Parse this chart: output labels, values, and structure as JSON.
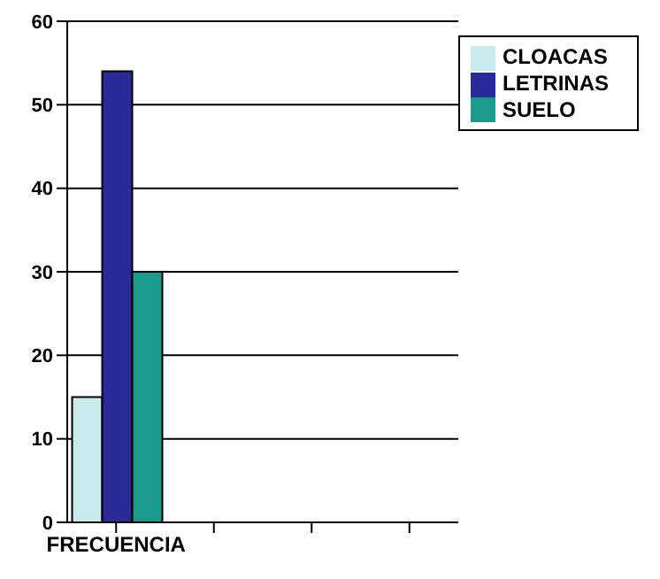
{
  "chart_data": {
    "type": "bar",
    "categories": [
      "FRECUENCIA",
      null,
      null,
      null
    ],
    "series": [
      {
        "name": "CLOACAS",
        "color": "#c8ecec",
        "values": [
          15,
          null,
          null,
          null
        ]
      },
      {
        "name": "LETRINAS",
        "color": "#2a2a9a",
        "values": [
          54,
          null,
          null,
          null
        ]
      },
      {
        "name": "SUELO",
        "color": "#1a9a8a",
        "values": [
          30,
          null,
          null,
          null
        ]
      }
    ],
    "ylim": [
      0,
      60
    ],
    "yticks": [
      0,
      10,
      20,
      30,
      40,
      50,
      60
    ],
    "grid": "y",
    "legend": "right"
  }
}
